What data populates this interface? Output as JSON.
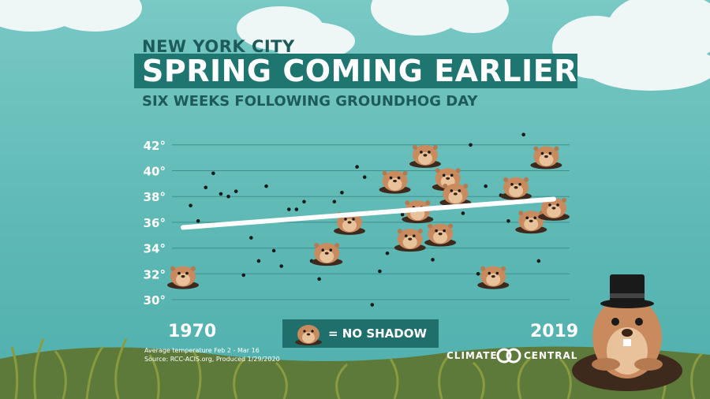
{
  "header": {
    "city": "NEW YORK CITY",
    "title": "SPRING COMING EARLIER",
    "subtitle": "SIX WEEKS FOLLOWING GROUNDHOG DAY"
  },
  "axis": {
    "start_year": "1970",
    "end_year": "2019"
  },
  "legend": {
    "label": "= NO SHADOW",
    "icon": "groundhog-icon"
  },
  "footnote": {
    "line1": "Average temperature Feb 2 - Mar 16",
    "line2": "Source: RCC-ACIS.org, Produced 1/29/2020"
  },
  "brand": {
    "left": "CLIMATE",
    "right": "CENTRAL"
  },
  "colors": {
    "background": "#5fb9b5",
    "title_box": "#1f7570",
    "trend": "#ffffff",
    "groundhog": "#c98a5e"
  },
  "chart_data": {
    "type": "scatter",
    "title": "SPRING COMING EARLIER",
    "xlabel": "",
    "ylabel": "",
    "xlim": [
      1970,
      2019
    ],
    "ylim": [
      29,
      43
    ],
    "yticks": [
      30,
      32,
      34,
      36,
      38,
      40,
      42
    ],
    "ytick_labels": [
      "30°",
      "32°",
      "34°",
      "36°",
      "38°",
      "40°",
      "42°"
    ],
    "grid": true,
    "points": [
      {
        "x": 1970,
        "y": 31.8,
        "no_shadow": true
      },
      {
        "x": 1971,
        "y": 37.3,
        "no_shadow": false
      },
      {
        "x": 1972,
        "y": 36.1,
        "no_shadow": false
      },
      {
        "x": 1973,
        "y": 38.7,
        "no_shadow": false
      },
      {
        "x": 1974,
        "y": 39.8,
        "no_shadow": false
      },
      {
        "x": 1975,
        "y": 38.2,
        "no_shadow": false
      },
      {
        "x": 1976,
        "y": 38.0,
        "no_shadow": false
      },
      {
        "x": 1977,
        "y": 38.4,
        "no_shadow": false
      },
      {
        "x": 1978,
        "y": 31.9,
        "no_shadow": false
      },
      {
        "x": 1979,
        "y": 34.8,
        "no_shadow": false
      },
      {
        "x": 1980,
        "y": 33.0,
        "no_shadow": false
      },
      {
        "x": 1981,
        "y": 38.8,
        "no_shadow": false
      },
      {
        "x": 1982,
        "y": 33.8,
        "no_shadow": false
      },
      {
        "x": 1983,
        "y": 32.6,
        "no_shadow": false
      },
      {
        "x": 1984,
        "y": 37.0,
        "no_shadow": false
      },
      {
        "x": 1985,
        "y": 37.0,
        "no_shadow": false
      },
      {
        "x": 1986,
        "y": 37.6,
        "no_shadow": false
      },
      {
        "x": 1987,
        "y": 33.0,
        "no_shadow": false
      },
      {
        "x": 1988,
        "y": 31.6,
        "no_shadow": false
      },
      {
        "x": 1989,
        "y": 33.6,
        "no_shadow": true
      },
      {
        "x": 1990,
        "y": 37.6,
        "no_shadow": false
      },
      {
        "x": 1991,
        "y": 38.3,
        "no_shadow": false
      },
      {
        "x": 1992,
        "y": 36.0,
        "no_shadow": true
      },
      {
        "x": 1993,
        "y": 40.3,
        "no_shadow": false
      },
      {
        "x": 1994,
        "y": 39.5,
        "no_shadow": false
      },
      {
        "x": 1995,
        "y": 29.6,
        "no_shadow": false
      },
      {
        "x": 1996,
        "y": 32.2,
        "no_shadow": false
      },
      {
        "x": 1997,
        "y": 33.6,
        "no_shadow": false
      },
      {
        "x": 1998,
        "y": 39.2,
        "no_shadow": true
      },
      {
        "x": 1999,
        "y": 36.6,
        "no_shadow": false
      },
      {
        "x": 2000,
        "y": 34.7,
        "no_shadow": true
      },
      {
        "x": 2001,
        "y": 36.9,
        "no_shadow": true
      },
      {
        "x": 2002,
        "y": 41.2,
        "no_shadow": true
      },
      {
        "x": 2003,
        "y": 33.1,
        "no_shadow": false
      },
      {
        "x": 2004,
        "y": 35.1,
        "no_shadow": true
      },
      {
        "x": 2005,
        "y": 39.4,
        "no_shadow": true
      },
      {
        "x": 2006,
        "y": 38.2,
        "no_shadow": true
      },
      {
        "x": 2007,
        "y": 36.7,
        "no_shadow": false
      },
      {
        "x": 2008,
        "y": 42.0,
        "no_shadow": false
      },
      {
        "x": 2009,
        "y": 32.0,
        "no_shadow": false
      },
      {
        "x": 2010,
        "y": 38.8,
        "no_shadow": false
      },
      {
        "x": 2011,
        "y": 31.8,
        "no_shadow": true
      },
      {
        "x": 2012,
        "y": 38.1,
        "no_shadow": false
      },
      {
        "x": 2013,
        "y": 36.1,
        "no_shadow": false
      },
      {
        "x": 2014,
        "y": 38.7,
        "no_shadow": true
      },
      {
        "x": 2015,
        "y": 42.8,
        "no_shadow": false
      },
      {
        "x": 2016,
        "y": 36.1,
        "no_shadow": true
      },
      {
        "x": 2017,
        "y": 33.0,
        "no_shadow": false
      },
      {
        "x": 2018,
        "y": 41.1,
        "no_shadow": true
      },
      {
        "x": 2019,
        "y": 37.1,
        "no_shadow": true
      }
    ],
    "trend": {
      "x": [
        1970,
        2019
      ],
      "y": [
        35.6,
        37.8
      ]
    }
  }
}
